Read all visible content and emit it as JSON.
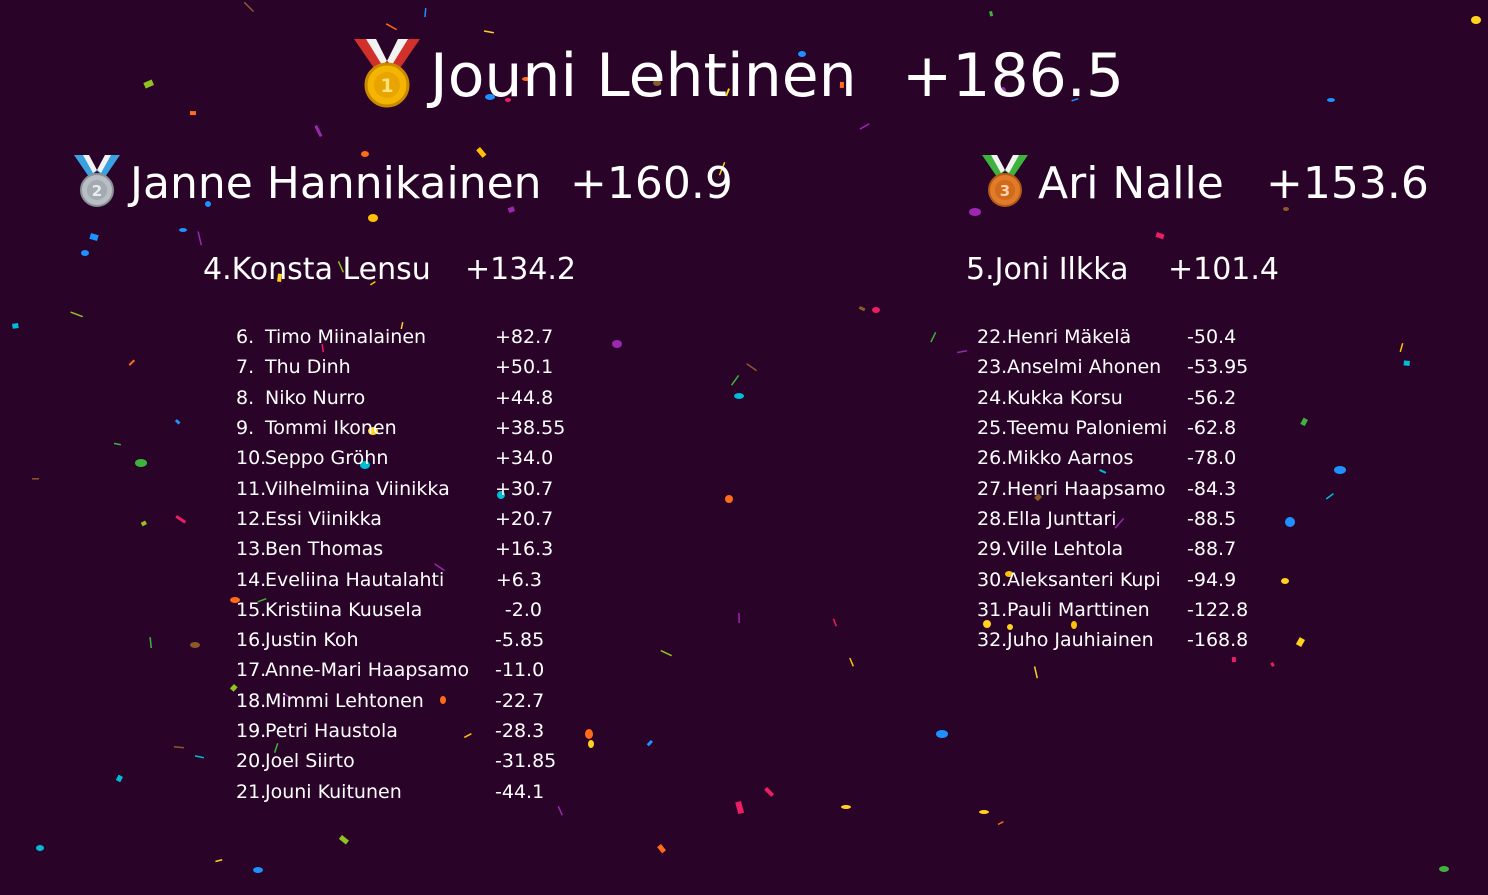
{
  "podium": {
    "first": {
      "name": "Jouni Lehtinen",
      "score": "+186.5",
      "medal": "gold-medal-icon"
    },
    "second": {
      "name": "Janne Hannikainen",
      "score": "+160.9",
      "medal": "silver-medal-icon"
    },
    "third": {
      "name": "Ari Nalle",
      "score": "+153.6",
      "medal": "bronze-medal-icon"
    },
    "fourth": {
      "rank": "4.",
      "name": "Konsta Lensu",
      "score": "+134.2"
    },
    "fifth": {
      "rank": "5.",
      "name": "Joni Ilkka",
      "score": "+101.4"
    }
  },
  "left_list": [
    {
      "rank": "6.",
      "name": "Timo Miinalainen",
      "score": "+82.7"
    },
    {
      "rank": "7.",
      "name": "Thu Dinh",
      "score": "+50.1"
    },
    {
      "rank": "8.",
      "name": "Niko Nurro",
      "score": "+44.8"
    },
    {
      "rank": "9.",
      "name": "Tommi Ikonen",
      "score": "+38.55"
    },
    {
      "rank": "10.",
      "name": "Seppo Gröhn",
      "score": "+34.0"
    },
    {
      "rank": "11.",
      "name": "Vilhelmiina Viinikka",
      "score": "+30.7"
    },
    {
      "rank": "12.",
      "name": "Essi Viinikka",
      "score": "+20.7"
    },
    {
      "rank": "13.",
      "name": "Ben Thomas",
      "score": "+16.3"
    },
    {
      "rank": "14.",
      "name": "Eveliina Hautalahti",
      "score": "+6.3"
    },
    {
      "rank": "15.",
      "name": "Kristiina Kuusela",
      "score": "-2.0"
    },
    {
      "rank": "16.",
      "name": "Justin Koh",
      "score": "-5.85"
    },
    {
      "rank": "17.",
      "name": "Anne-Mari Haapsamo",
      "score": "-11.0"
    },
    {
      "rank": "18.",
      "name": "Mimmi Lehtonen",
      "score": "-22.7"
    },
    {
      "rank": "19.",
      "name": "Petri Haustola",
      "score": "-28.3"
    },
    {
      "rank": "20.",
      "name": "Joel Siirto",
      "score": "-31.85"
    },
    {
      "rank": "21.",
      "name": "Jouni Kuitunen",
      "score": "-44.1"
    }
  ],
  "right_list": [
    {
      "rank": "22.",
      "name": "Henri Mäkelä",
      "score": "-50.4"
    },
    {
      "rank": "23.",
      "name": "Anselmi Ahonen",
      "score": "-53.95"
    },
    {
      "rank": "24.",
      "name": "Kukka Korsu",
      "score": "-56.2"
    },
    {
      "rank": "25.",
      "name": "Teemu Paloniemi",
      "score": "-62.8"
    },
    {
      "rank": "26.",
      "name": "Mikko Aarnos",
      "score": "-78.0"
    },
    {
      "rank": "27.",
      "name": "Henri Haapsamo",
      "score": "-84.3"
    },
    {
      "rank": "28.",
      "name": "Ella Junttari",
      "score": "-88.5"
    },
    {
      "rank": "29.",
      "name": "Ville Lehtola",
      "score": "-88.7"
    },
    {
      "rank": "30.",
      "name": "Aleksanteri Kupi",
      "score": "-94.9"
    },
    {
      "rank": "31.",
      "name": "Pauli Marttinen",
      "score": "-122.8"
    },
    {
      "rank": "32.",
      "name": "Juho Jauhiainen",
      "score": "-168.8"
    }
  ],
  "colors": {
    "background": "#2a0328",
    "text": "#ffffff",
    "gold": "#f5b400",
    "silver": "#b8bec4",
    "bronze": "#e07b2a",
    "ribbon_red": "#d2302a",
    "ribbon_blue": "#3aa0e0",
    "ribbon_green": "#3db33d",
    "confetti": [
      "#ffd21f",
      "#ff6b1a",
      "#3db33d",
      "#8fc31f",
      "#1e90ff",
      "#00bcd4",
      "#e91e63",
      "#9c27b0",
      "#8b5a2b",
      "#ffc107"
    ]
  }
}
